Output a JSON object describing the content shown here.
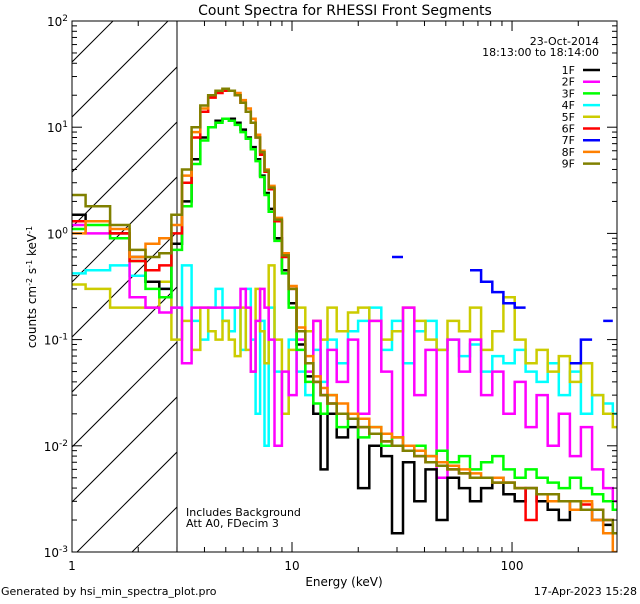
{
  "chart_data": {
    "type": "line",
    "title": "Count Spectra for RHESSI Front Segments",
    "xlabel": "Energy (keV)",
    "ylabel_parts": [
      "counts cm",
      "-2",
      " s",
      "-1",
      " keV",
      "-1"
    ],
    "xscale": "log",
    "yscale": "log",
    "xlim": [
      1,
      300
    ],
    "ylim": [
      0.001,
      100
    ],
    "x_ticks": [
      {
        "v": 1,
        "label": "1"
      },
      {
        "v": 10,
        "label": "10"
      },
      {
        "v": 100,
        "label": "100"
      }
    ],
    "y_ticks": [
      {
        "v": 100,
        "exp": "2"
      },
      {
        "v": 10,
        "exp": "1"
      },
      {
        "v": 1,
        "exp": "0"
      },
      {
        "v": 0.1,
        "exp": "-1"
      },
      {
        "v": 0.01,
        "exp": "-2"
      },
      {
        "v": 0.001,
        "exp": "-3"
      }
    ],
    "y_tick_base": "10",
    "hatched_region_kev": [
      1,
      3
    ],
    "legend_position": "top-right",
    "legend_header": [
      "23-Oct-2014",
      "18:13:00 to 18:14:00"
    ],
    "annotations": [
      "Includes Background",
      "Att A0, FDecim 3"
    ],
    "energies": [
      1.0,
      1.33,
      1.67,
      2.0,
      2.33,
      2.67,
      3.0,
      3.33,
      3.67,
      4.0,
      4.33,
      4.67,
      5.0,
      5.33,
      5.67,
      6.0,
      6.33,
      6.67,
      7.0,
      7.33,
      7.67,
      8.0,
      8.67,
      9.33,
      10,
      11,
      12,
      13,
      14,
      15,
      17,
      19,
      21,
      24,
      27,
      30,
      34,
      38,
      43,
      48,
      54,
      61,
      68,
      77,
      86,
      97,
      109,
      122,
      137,
      154,
      173,
      194,
      218,
      245,
      275,
      300
    ],
    "series": [
      {
        "name": "1F",
        "color": "#000000",
        "values": [
          1.5,
          1.3,
          1.0,
          0.6,
          0.35,
          0.3,
          0.8,
          2.0,
          5,
          8,
          10,
          11.5,
          12,
          12,
          11,
          9.5,
          8,
          6.5,
          5,
          3.5,
          2.4,
          1.7,
          0.9,
          0.45,
          0.22,
          0.09,
          0.045,
          0.02,
          0.006,
          0.02,
          0.012,
          0.015,
          0.004,
          0.01,
          0.008,
          0.0015,
          0.007,
          0.003,
          0.006,
          0.002,
          0.005,
          0.004,
          0.003,
          0.004,
          0.005,
          0.0035,
          0.003,
          0.004,
          0.003,
          0.0025,
          0.002,
          0.003,
          0.0025,
          0.002,
          0.0018,
          0.0015
        ]
      },
      {
        "name": "2F",
        "color": "#ff00ff",
        "values": [
          1.2,
          1.0,
          0.9,
          0.25,
          0.2,
          0.18,
          0.2,
          0.06,
          0.2,
          0.2,
          0.2,
          0.2,
          0.2,
          0.2,
          0.2,
          0.3,
          0.2,
          0.05,
          0.15,
          0.3,
          0.2,
          0.1,
          0.01,
          0.05,
          0.03,
          0.1,
          0.05,
          0.15,
          0.03,
          0.08,
          0.04,
          0.1,
          0.02,
          0.15,
          0.05,
          0.01,
          0.2,
          0.03,
          0.08,
          0.005,
          0.1,
          0.05,
          0.1,
          0.03,
          0.05,
          0.02,
          0.04,
          0.015,
          0.03,
          0.01,
          0.02,
          0.008,
          0.015,
          0.006,
          0.004,
          0.003
        ]
      },
      {
        "name": "3F",
        "color": "#00ff00",
        "values": [
          1.1,
          1.2,
          0.9,
          0.55,
          0.3,
          0.25,
          0.7,
          1.8,
          4.5,
          7.5,
          10,
          11,
          12,
          11.5,
          10.5,
          9,
          7.8,
          6.2,
          4.8,
          3.4,
          2.3,
          1.6,
          0.85,
          0.42,
          0.2,
          0.08,
          0.04,
          0.025,
          0.02,
          0.03,
          0.015,
          0.02,
          0.012,
          0.015,
          0.01,
          0.012,
          0.009,
          0.01,
          0.008,
          0.009,
          0.007,
          0.008,
          0.006,
          0.007,
          0.008,
          0.006,
          0.005,
          0.006,
          0.005,
          0.0045,
          0.004,
          0.005,
          0.004,
          0.0035,
          0.003,
          0.0025
        ]
      },
      {
        "name": "4F",
        "color": "#00ffff",
        "values": [
          0.42,
          0.45,
          0.5,
          0.4,
          0.35,
          0.3,
          0.2,
          0.5,
          0.15,
          0.1,
          0.2,
          0.3,
          0.15,
          0.12,
          0.2,
          0.08,
          0.3,
          0.1,
          0.02,
          0.15,
          0.01,
          0.2,
          0.05,
          0.02,
          0.1,
          0.05,
          0.03,
          0.08,
          0.04,
          0.1,
          0.06,
          0.12,
          0.15,
          0.2,
          0.08,
          0.15,
          0.06,
          0.12,
          0.15,
          0.08,
          0.1,
          0.07,
          0.09,
          0.05,
          0.07,
          0.06,
          0.08,
          0.05,
          0.04,
          0.06,
          0.03,
          0.05,
          0.02,
          0.03,
          0.025,
          0.02
        ]
      },
      {
        "name": "5F",
        "color": "#cccc00",
        "values": [
          0.33,
          0.3,
          0.2,
          0.2,
          0.2,
          0.35,
          0.1,
          0.15,
          0.08,
          0.2,
          0.12,
          0.1,
          0.15,
          0.1,
          0.07,
          0.2,
          0.08,
          0.05,
          0.3,
          0.12,
          0.06,
          0.5,
          0.1,
          0.02,
          0.08,
          0.2,
          0.12,
          0.15,
          0.1,
          0.2,
          0.12,
          0.18,
          0.2,
          0.15,
          0.1,
          0.12,
          0.2,
          0.15,
          0.1,
          0.08,
          0.15,
          0.12,
          0.2,
          0.08,
          0.12,
          0.25,
          0.1,
          0.06,
          0.08,
          0.05,
          0.07,
          0.04,
          0.06,
          0.03,
          0.02,
          0.015
        ]
      },
      {
        "name": "6F",
        "color": "#ff0000",
        "values": [
          1.3,
          1.3,
          1.0,
          0.55,
          0.45,
          0.5,
          1.0,
          3,
          8,
          14,
          19,
          21,
          22,
          22,
          20,
          17,
          14,
          11,
          8,
          5.5,
          3.8,
          2.6,
          1.3,
          0.6,
          0.3,
          0.12,
          0.06,
          0.04,
          0.03,
          0.025,
          0.02,
          0.018,
          0.015,
          0.013,
          0.011,
          0.01,
          0.009,
          0.008,
          0.007,
          0.0065,
          0.006,
          0.0055,
          0.005,
          0.005,
          0.0045,
          0.0045,
          0.004,
          0.002,
          0.0035,
          0.0035,
          0.003,
          0.003,
          0.0028,
          0.0025,
          0.002,
          0.0015
        ]
      },
      {
        "name": "7F",
        "color": "#0000ff",
        "values": [
          null,
          null,
          null,
          null,
          null,
          null,
          null,
          null,
          null,
          null,
          null,
          null,
          null,
          null,
          null,
          null,
          null,
          null,
          null,
          null,
          null,
          null,
          null,
          null,
          null,
          null,
          null,
          null,
          null,
          null,
          null,
          null,
          null,
          null,
          null,
          0.6,
          null,
          null,
          null,
          null,
          null,
          null,
          0.45,
          0.35,
          0.28,
          0.22,
          0.2,
          null,
          null,
          null,
          null,
          0.06,
          0.1,
          null,
          0.15,
          null
        ]
      },
      {
        "name": "8F",
        "color": "#ff8000",
        "values": [
          1.0,
          1.3,
          1.1,
          0.6,
          0.8,
          0.9,
          1.2,
          3.5,
          9,
          15,
          20,
          22,
          23,
          22,
          21,
          18,
          15,
          12,
          8.5,
          6,
          4,
          2.8,
          1.4,
          0.65,
          0.32,
          0.13,
          0.07,
          0.045,
          0.035,
          0.03,
          0.025,
          0.02,
          0.018,
          0.015,
          0.013,
          0.012,
          0.01,
          0.009,
          0.008,
          0.007,
          0.0065,
          0.006,
          0.0055,
          0.005,
          0.005,
          0.0045,
          0.004,
          0.004,
          0.0035,
          0.003,
          0.003,
          0.0025,
          0.003,
          0.002,
          0.0015,
          0.001
        ]
      },
      {
        "name": "9F",
        "color": "#808000",
        "values": [
          2.3,
          1.8,
          1.2,
          0.7,
          0.6,
          0.65,
          1.5,
          4,
          10,
          16,
          20,
          22,
          23,
          22,
          20,
          17,
          14,
          11,
          8,
          5.8,
          3.9,
          2.7,
          1.35,
          0.62,
          0.3,
          0.12,
          0.06,
          0.04,
          0.03,
          0.025,
          0.02,
          0.018,
          0.015,
          0.013,
          0.011,
          0.01,
          0.009,
          0.008,
          0.007,
          0.0065,
          0.006,
          0.0055,
          0.005,
          0.005,
          0.0045,
          0.0045,
          0.004,
          0.004,
          0.0035,
          0.0035,
          0.003,
          0.003,
          0.0025,
          0.0025,
          0.002,
          0.0015
        ]
      }
    ]
  },
  "footer": {
    "generated_by": "Generated by hsi_min_spectra_plot.pro",
    "timestamp": "17-Apr-2023 15:28"
  }
}
